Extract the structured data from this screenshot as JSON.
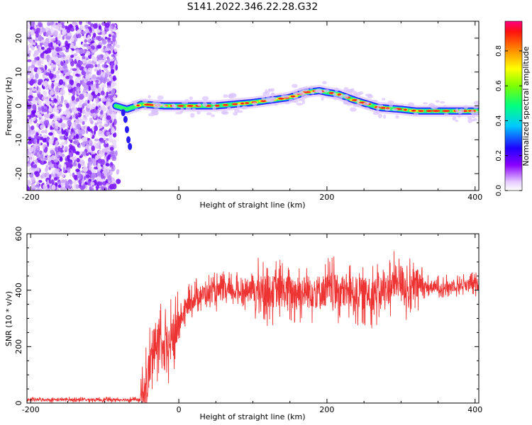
{
  "title": "S141.2022.346.22.28.G32",
  "chart_data": [
    {
      "type": "heatmap",
      "panel": "top",
      "xlabel": "Height of straight line (km)",
      "ylabel": "Frequency (Hz)",
      "xlim": [
        -205,
        405
      ],
      "ylim": [
        -25,
        25
      ],
      "xticks": [
        -200,
        0,
        200,
        400
      ],
      "yticks": [
        -20,
        -10,
        0,
        10,
        20
      ],
      "noise_region_x": [
        -205,
        -85
      ],
      "frequency_track": {
        "x": [
          -85,
          -70,
          -50,
          -20,
          0,
          50,
          100,
          150,
          170,
          190,
          200,
          215,
          240,
          270,
          300,
          320,
          405
        ],
        "y": [
          0,
          -1,
          0.5,
          0,
          0,
          0,
          1,
          2.5,
          4,
          4.5,
          4,
          3.5,
          1.5,
          -0.5,
          -1,
          -1.5,
          -1.5
        ]
      },
      "colorbar": {
        "label": "Normalized spectral amplitude",
        "range": [
          0,
          0.97
        ],
        "ticks": [
          0.0,
          0.2,
          0.4,
          0.6,
          0.8
        ]
      }
    },
    {
      "type": "line",
      "panel": "bottom",
      "xlabel": "Height of straight line (km)",
      "ylabel": "SNR (10 * v/v)",
      "xlim": [
        -205,
        405
      ],
      "ylim": [
        0,
        600
      ],
      "xticks": [
        -200,
        0,
        200,
        400
      ],
      "yticks": [
        0,
        200,
        400,
        600
      ],
      "series": [
        {
          "name": "SNR",
          "color": "#ee3333",
          "x": [
            -205,
            -100,
            -52,
            -45,
            -40,
            -30,
            -20,
            -10,
            0,
            10,
            20,
            30,
            40,
            60,
            80,
            100,
            120,
            140,
            160,
            180,
            200,
            220,
            240,
            260,
            280,
            300,
            310,
            320,
            340,
            360,
            380,
            405
          ],
          "y": [
            12,
            12,
            12,
            30,
            120,
            230,
            170,
            220,
            280,
            340,
            370,
            385,
            390,
            395,
            395,
            400,
            395,
            395,
            395,
            395,
            400,
            395,
            390,
            385,
            400,
            440,
            390,
            420,
            410,
            410,
            420,
            420
          ]
        }
      ]
    }
  ]
}
